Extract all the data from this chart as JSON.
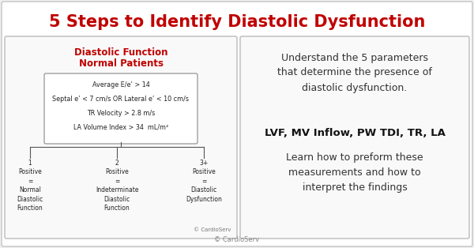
{
  "title": "5 Steps to Identify Diastolic Dysfunction",
  "title_color": "#c00000",
  "title_fontsize": 15,
  "bg_color": "#f0f0f0",
  "outer_bg": "#f0f0f0",
  "left_box_title_line1": "Diastolic Function",
  "left_box_title_line2": "Normal Patients",
  "left_box_title_color": "#c00000",
  "criteria": [
    "Average E/e’ > 14",
    "Septal e’ < 7 cm/s OR Lateral e’ < 10 cm/s",
    "TR Velocity > 2.8 m/s",
    "LA Volume Index > 34  mL/m²"
  ],
  "outcomes": [
    {
      "label": "1\nPositive\n=\nNormal\nDiastolic\nFunction",
      "xf": 0.06
    },
    {
      "label": "2\nPositive\n=\nIndeterminate\nDiastolic\nFunction",
      "xf": 0.25
    },
    {
      "label": "3+\nPositive\n=\nDiastolic\nDysfunction",
      "xf": 0.44
    }
  ],
  "copyright_left": "© CardioServ",
  "copyright_bottom": "© CardioServ",
  "right_text1": "Understand the 5 parameters\nthat determine the presence of\ndiastolic dysfunction.",
  "right_text2": "LVF, MV Inflow, PW TDI, TR, LA",
  "right_text3": "Learn how to preform these\nmeasurements and how to\ninterpret the findings"
}
